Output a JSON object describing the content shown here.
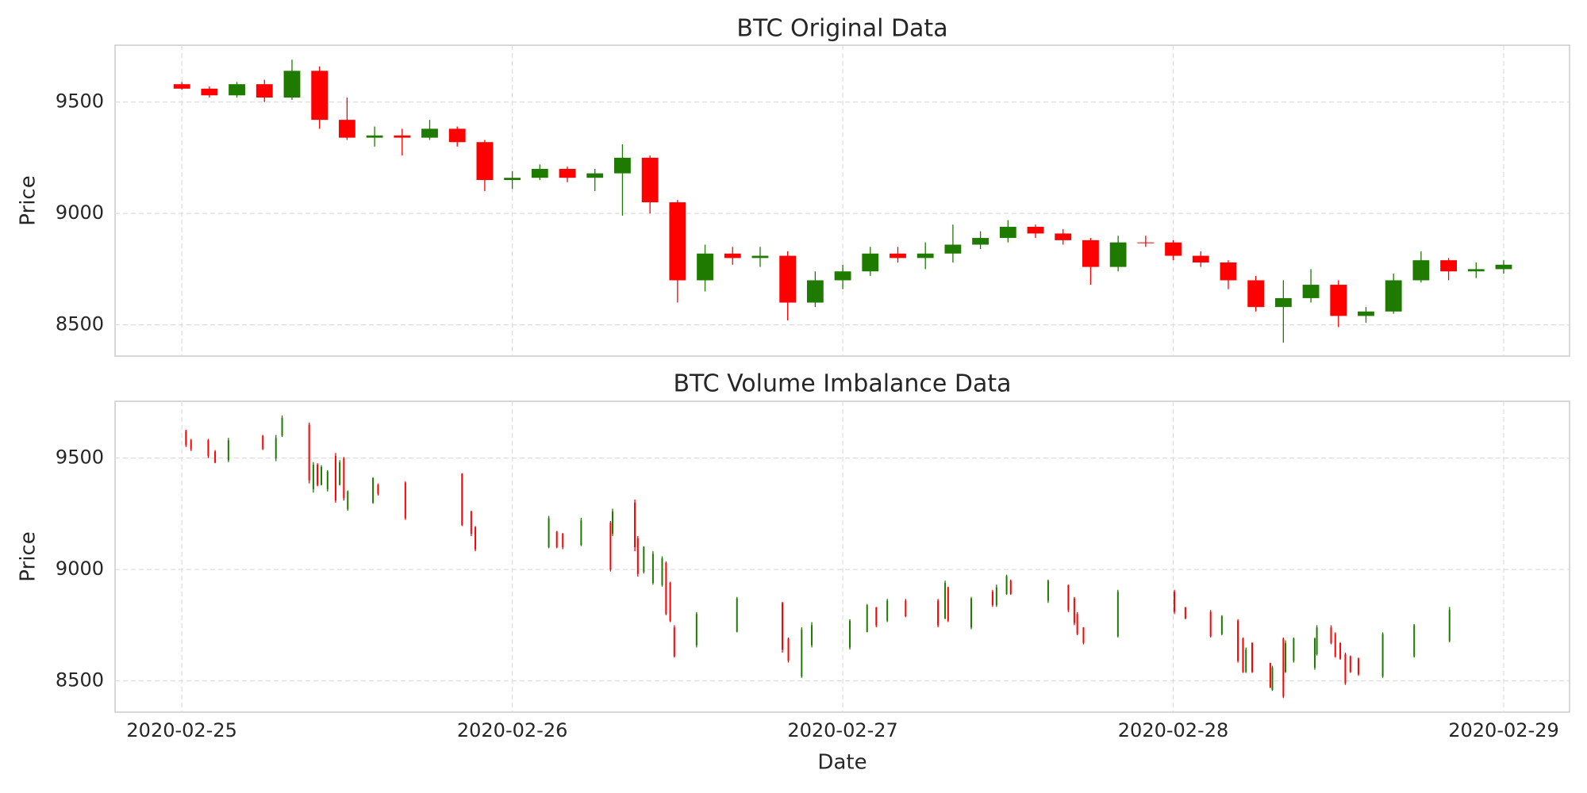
{
  "chart_data": [
    {
      "type": "candlestick",
      "title": "BTC Original Data",
      "y_label": "Price",
      "up_color": "#1f7a00",
      "down_color": "#ff0000",
      "grid": true,
      "show_xtick_labels": false,
      "xlim": [
        "2020-02-24T19:09",
        "2020-02-29T04:47"
      ],
      "xticks": [
        "2020-02-25",
        "2020-02-26",
        "2020-02-27",
        "2020-02-28",
        "2020-02-29"
      ],
      "ylim": [
        8360,
        9755
      ],
      "yticks": [
        8500,
        9000,
        9500
      ],
      "x": [
        "2020-02-25T00:00",
        "2020-02-25T02:00",
        "2020-02-25T04:00",
        "2020-02-25T06:00",
        "2020-02-25T08:00",
        "2020-02-25T10:00",
        "2020-02-25T12:00",
        "2020-02-25T14:00",
        "2020-02-25T16:00",
        "2020-02-25T18:00",
        "2020-02-25T20:00",
        "2020-02-25T22:00",
        "2020-02-26T00:00",
        "2020-02-26T02:00",
        "2020-02-26T04:00",
        "2020-02-26T06:00",
        "2020-02-26T08:00",
        "2020-02-26T10:00",
        "2020-02-26T12:00",
        "2020-02-26T14:00",
        "2020-02-26T16:00",
        "2020-02-26T18:00",
        "2020-02-26T20:00",
        "2020-02-26T22:00",
        "2020-02-27T00:00",
        "2020-02-27T02:00",
        "2020-02-27T04:00",
        "2020-02-27T06:00",
        "2020-02-27T08:00",
        "2020-02-27T10:00",
        "2020-02-27T12:00",
        "2020-02-27T14:00",
        "2020-02-27T16:00",
        "2020-02-27T18:00",
        "2020-02-27T20:00",
        "2020-02-27T22:00",
        "2020-02-28T00:00",
        "2020-02-28T02:00",
        "2020-02-28T04:00",
        "2020-02-28T06:00",
        "2020-02-28T08:00",
        "2020-02-28T10:00",
        "2020-02-28T12:00",
        "2020-02-28T14:00",
        "2020-02-28T16:00",
        "2020-02-28T18:00",
        "2020-02-28T20:00",
        "2020-02-28T22:00",
        "2020-02-29T00:00"
      ],
      "open": [
        9580,
        9560,
        9530,
        9580,
        9520,
        9640,
        9420,
        9340,
        9350,
        9340,
        9380,
        9320,
        9150,
        9160,
        9200,
        9160,
        9180,
        9250,
        9050,
        8700,
        8820,
        8800,
        8810,
        8600,
        8700,
        8740,
        8820,
        8800,
        8820,
        8860,
        8890,
        8940,
        8910,
        8880,
        8760,
        8870,
        8870,
        8810,
        8780,
        8700,
        8580,
        8620,
        8680,
        8540,
        8560,
        8700,
        8790,
        8740,
        8750
      ],
      "high": [
        9590,
        9570,
        9590,
        9600,
        9690,
        9660,
        9520,
        9390,
        9380,
        9420,
        9390,
        9330,
        9190,
        9220,
        9210,
        9200,
        9310,
        9260,
        9060,
        8860,
        8850,
        8850,
        8830,
        8740,
        8770,
        8850,
        8850,
        8870,
        8950,
        8920,
        8970,
        8950,
        8930,
        8890,
        8900,
        8900,
        8880,
        8830,
        8790,
        8720,
        8700,
        8750,
        8700,
        8580,
        8730,
        8830,
        8800,
        8780,
        8790
      ],
      "low": [
        9555,
        9520,
        9520,
        9500,
        9510,
        9380,
        9330,
        9300,
        9260,
        9330,
        9300,
        9100,
        9110,
        9150,
        9140,
        9100,
        8990,
        9000,
        8600,
        8650,
        8770,
        8760,
        8520,
        8580,
        8660,
        8720,
        8780,
        8750,
        8780,
        8840,
        8870,
        8890,
        8860,
        8680,
        8740,
        8850,
        8790,
        8760,
        8660,
        8560,
        8420,
        8600,
        8490,
        8510,
        8550,
        8690,
        8700,
        8710,
        8730
      ],
      "close": [
        9560,
        9530,
        9580,
        9520,
        9640,
        9420,
        9340,
        9350,
        9340,
        9380,
        9320,
        9150,
        9160,
        9200,
        9160,
        9180,
        9250,
        9050,
        8700,
        8820,
        8800,
        8810,
        8600,
        8700,
        8740,
        8820,
        8800,
        8820,
        8860,
        8890,
        8940,
        8910,
        8880,
        8760,
        8870,
        8870,
        8810,
        8780,
        8700,
        8580,
        8620,
        8680,
        8540,
        8560,
        8700,
        8790,
        8740,
        8750,
        8770
      ]
    },
    {
      "type": "candlestick",
      "title": "BTC Volume Imbalance Data",
      "y_label": "Price",
      "x_label": "Date",
      "up_color": "#1f7a00",
      "down_color": "#ff0000",
      "grid": true,
      "show_xtick_labels": true,
      "xlim": [
        "2020-02-24T19:09",
        "2020-02-29T04:47"
      ],
      "xticks": [
        "2020-02-25",
        "2020-02-26",
        "2020-02-27",
        "2020-02-28",
        "2020-02-29"
      ],
      "ylim": [
        8360,
        9755
      ],
      "yticks": [
        8500,
        9000,
        9500
      ],
      "x": [
        "2020-02-25T00:18",
        "2020-02-25T00:40",
        "2020-02-25T01:55",
        "2020-02-25T02:25",
        "2020-02-25T03:23",
        "2020-02-25T05:53",
        "2020-02-25T06:50",
        "2020-02-25T07:17",
        "2020-02-25T09:15",
        "2020-02-25T09:33",
        "2020-02-25T09:51",
        "2020-02-25T10:08",
        "2020-02-25T10:35",
        "2020-02-25T11:10",
        "2020-02-25T11:28",
        "2020-02-25T11:46",
        "2020-02-25T12:03",
        "2020-02-25T13:53",
        "2020-02-25T14:15",
        "2020-02-25T16:14",
        "2020-02-25T20:21",
        "2020-02-25T21:01",
        "2020-02-25T21:19",
        "2020-02-26T02:39",
        "2020-02-26T03:14",
        "2020-02-26T03:40",
        "2020-02-26T05:00",
        "2020-02-26T07:08",
        "2020-02-26T07:17",
        "2020-02-26T08:54",
        "2020-02-26T09:07",
        "2020-02-26T09:33",
        "2020-02-26T10:13",
        "2020-02-26T10:53",
        "2020-02-26T11:10",
        "2020-02-26T11:28",
        "2020-02-26T11:46",
        "2020-02-26T13:23",
        "2020-02-26T16:19",
        "2020-02-26T19:37",
        "2020-02-26T20:03",
        "2020-02-26T21:01",
        "2020-02-26T21:45",
        "2020-02-27T00:31",
        "2020-02-27T01:46",
        "2020-02-27T02:26",
        "2020-02-27T03:14",
        "2020-02-27T04:34",
        "2020-02-27T06:55",
        "2020-02-27T07:26",
        "2020-02-27T07:39",
        "2020-02-27T09:20",
        "2020-02-27T10:53",
        "2020-02-27T11:10",
        "2020-02-27T11:54",
        "2020-02-27T12:12",
        "2020-02-27T14:55",
        "2020-02-27T16:23",
        "2020-02-27T16:49",
        "2020-02-27T17:02",
        "2020-02-27T17:29",
        "2020-02-27T19:59",
        "2020-02-28T00:05",
        "2020-02-28T00:53",
        "2020-02-28T02:43",
        "2020-02-28T03:32",
        "2020-02-28T04:42",
        "2020-02-28T05:04",
        "2020-02-28T05:17",
        "2020-02-28T05:44",
        "2020-02-28T07:03",
        "2020-02-28T07:12",
        "2020-02-28T08:00",
        "2020-02-28T08:09",
        "2020-02-28T08:45",
        "2020-02-28T10:17",
        "2020-02-28T10:26",
        "2020-02-28T11:28",
        "2020-02-28T11:46",
        "2020-02-28T12:08",
        "2020-02-28T12:30",
        "2020-02-28T12:52",
        "2020-02-28T13:27",
        "2020-02-28T15:13",
        "2020-02-28T17:30",
        "2020-02-28T20:04"
      ],
      "open": [
        9620,
        9580,
        9580,
        9530,
        9490,
        9600,
        9500,
        9600,
        9650,
        9360,
        9470,
        9380,
        9360,
        9510,
        9380,
        9500,
        9270,
        9300,
        9380,
        9390,
        9430,
        9260,
        9190,
        9100,
        9170,
        9160,
        9110,
        9210,
        9160,
        9300,
        9140,
        8990,
        8940,
        8930,
        9030,
        8940,
        8740,
        8660,
        8720,
        8850,
        8690,
        8520,
        8660,
        8650,
        8720,
        8830,
        8770,
        8860,
        8860,
        8780,
        8920,
        8740,
        8900,
        8840,
        8890,
        8950,
        8860,
        8930,
        8870,
        8800,
        8740,
        8700,
        8900,
        8830,
        8810,
        8710,
        8770,
        8690,
        8540,
        8670,
        8580,
        8460,
        8690,
        8540,
        8590,
        8560,
        8620,
        8740,
        8710,
        8670,
        8620,
        8610,
        8600,
        8520,
        8610,
        8680
      ],
      "high": [
        9627,
        9586,
        9586,
        9536,
        9591,
        9604,
        9604,
        9691,
        9659,
        9482,
        9477,
        9468,
        9445,
        9523,
        9491,
        9505,
        9355,
        9414,
        9386,
        9395,
        9432,
        9264,
        9195,
        9241,
        9173,
        9164,
        9232,
        9218,
        9273,
        9314,
        9150,
        9105,
        9082,
        9059,
        9036,
        8945,
        8750,
        8809,
        8877,
        8855,
        8695,
        8741,
        8764,
        8777,
        8845,
        8832,
        8868,
        8868,
        8868,
        8950,
        8923,
        8877,
        8909,
        8932,
        8977,
        8955,
        8955,
        8932,
        8877,
        8809,
        8741,
        8909,
        8909,
        8832,
        8818,
        8795,
        8777,
        8695,
        8650,
        8673,
        8582,
        8568,
        8695,
        8682,
        8695,
        8695,
        8750,
        8750,
        8718,
        8673,
        8627,
        8614,
        8605,
        8718,
        8755,
        8832
      ],
      "low": [
        9550,
        9532,
        9500,
        9477,
        9482,
        9536,
        9486,
        9595,
        9386,
        9345,
        9373,
        9377,
        9350,
        9300,
        9377,
        9309,
        9264,
        9295,
        9332,
        9223,
        9195,
        9150,
        9082,
        9095,
        9095,
        9091,
        9105,
        8991,
        9150,
        9082,
        8968,
        8982,
        8932,
        8923,
        8795,
        8764,
        8605,
        8650,
        8718,
        8627,
        8582,
        8514,
        8650,
        8641,
        8718,
        8741,
        8764,
        8786,
        8741,
        8777,
        8764,
        8732,
        8832,
        8832,
        8886,
        8886,
        8850,
        8809,
        8750,
        8705,
        8664,
        8695,
        8800,
        8777,
        8695,
        8705,
        8582,
        8536,
        8536,
        8536,
        8468,
        8455,
        8423,
        8536,
        8582,
        8550,
        8614,
        8664,
        8605,
        8595,
        8482,
        8536,
        8523,
        8514,
        8605,
        8673
      ],
      "close": [
        9560,
        9540,
        9510,
        9480,
        9580,
        9540,
        9590,
        9680,
        9400,
        9470,
        9380,
        9460,
        9440,
        9310,
        9480,
        9320,
        9350,
        9410,
        9340,
        9230,
        9200,
        9160,
        9090,
        9230,
        9100,
        9100,
        9220,
        9000,
        9260,
        9100,
        8980,
        9100,
        9070,
        9050,
        8800,
        8770,
        8610,
        8800,
        8870,
        8640,
        8590,
        8730,
        8750,
        8770,
        8840,
        8750,
        8860,
        8790,
        8750,
        8940,
        8770,
        8870,
        8840,
        8920,
        8970,
        8890,
        8950,
        8820,
        8760,
        8710,
        8670,
        8900,
        8810,
        8780,
        8700,
        8790,
        8590,
        8540,
        8640,
        8540,
        8470,
        8560,
        8430,
        8670,
        8690,
        8690,
        8740,
        8670,
        8610,
        8600,
        8490,
        8540,
        8530,
        8710,
        8750,
        8820
      ]
    }
  ]
}
